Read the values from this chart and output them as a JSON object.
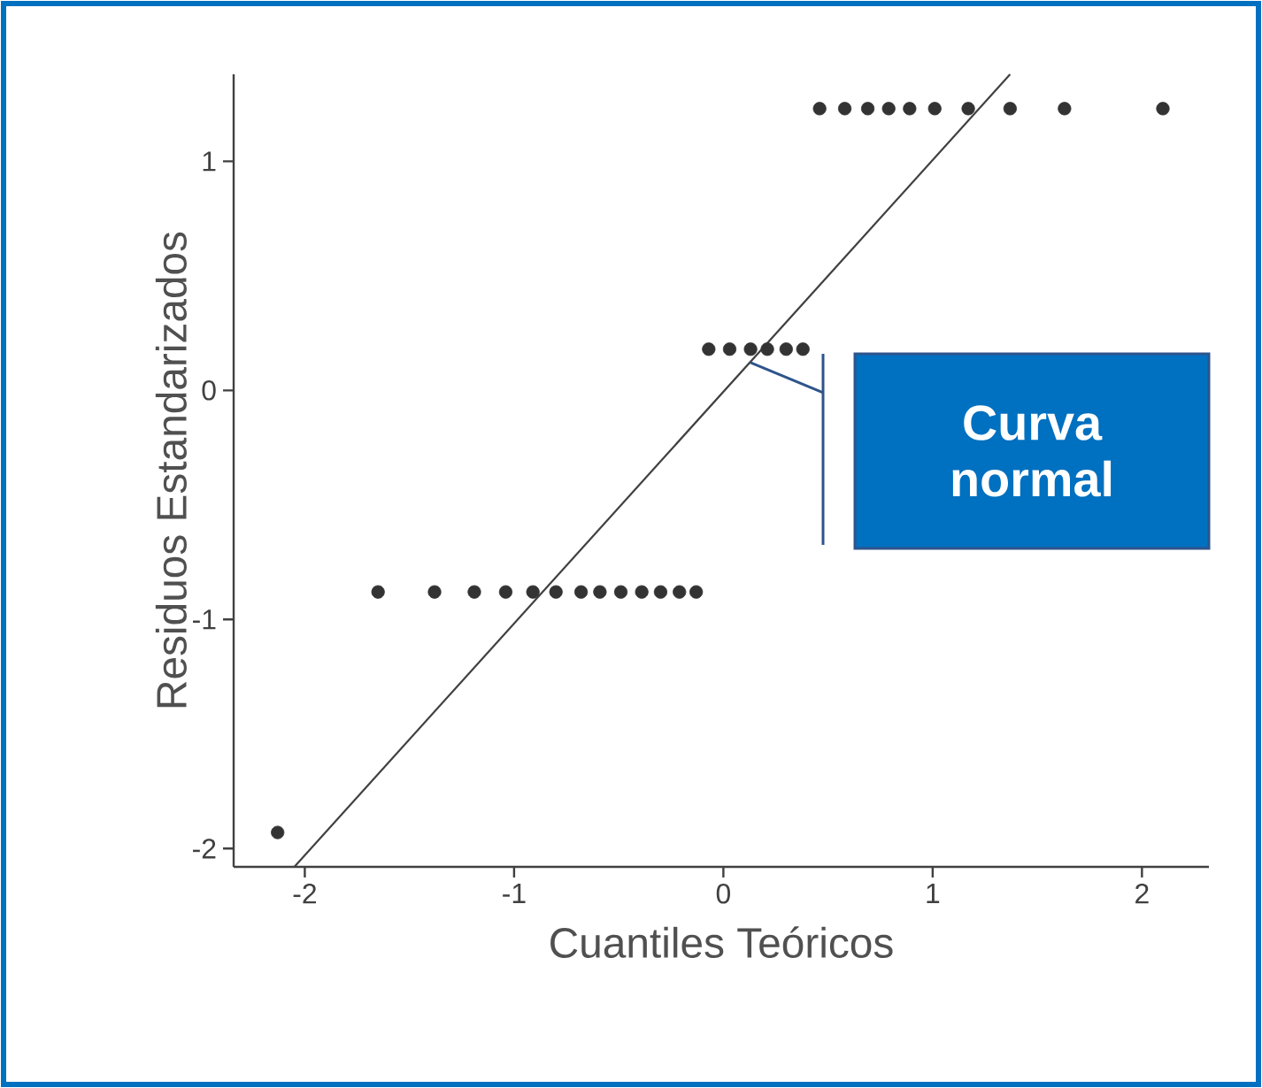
{
  "chart_data": {
    "type": "scatter",
    "xlabel": "Cuantiles Teóricos",
    "ylabel": "Residuos Estandarizados",
    "xlim": [
      -2.34,
      2.32
    ],
    "ylim": [
      -2.08,
      1.38
    ],
    "xticks": [
      -2,
      -1,
      0,
      1,
      2
    ],
    "yticks": [
      -2,
      -1,
      0,
      1
    ],
    "series": [
      {
        "marker": "circle",
        "color": "#333333",
        "x": [
          -2.13,
          -1.65,
          -1.38,
          -1.19,
          -1.04,
          -0.91,
          -0.8,
          -0.68,
          -0.59,
          -0.49,
          -0.39,
          -0.3,
          -0.21,
          -0.13,
          -0.07,
          0.03,
          0.13,
          0.21,
          0.3,
          0.38,
          0.46,
          0.58,
          0.69,
          0.79,
          0.89,
          1.01,
          1.17,
          1.37,
          1.63,
          2.1
        ],
        "values": [
          -1.93,
          -0.88,
          -0.88,
          -0.88,
          -0.88,
          -0.88,
          -0.88,
          -0.88,
          -0.88,
          -0.88,
          -0.88,
          -0.88,
          -0.88,
          -0.88,
          0.18,
          0.18,
          0.18,
          0.18,
          0.18,
          0.18,
          1.23,
          1.23,
          1.23,
          1.23,
          1.23,
          1.23,
          1.23,
          1.23,
          1.23,
          1.23
        ]
      },
      {
        "type": "line",
        "color": "#404040",
        "x": [
          -2.05,
          1.37
        ],
        "values": [
          -2.08,
          1.38
        ]
      }
    ],
    "annotations": [
      "Curva normal"
    ]
  }
}
